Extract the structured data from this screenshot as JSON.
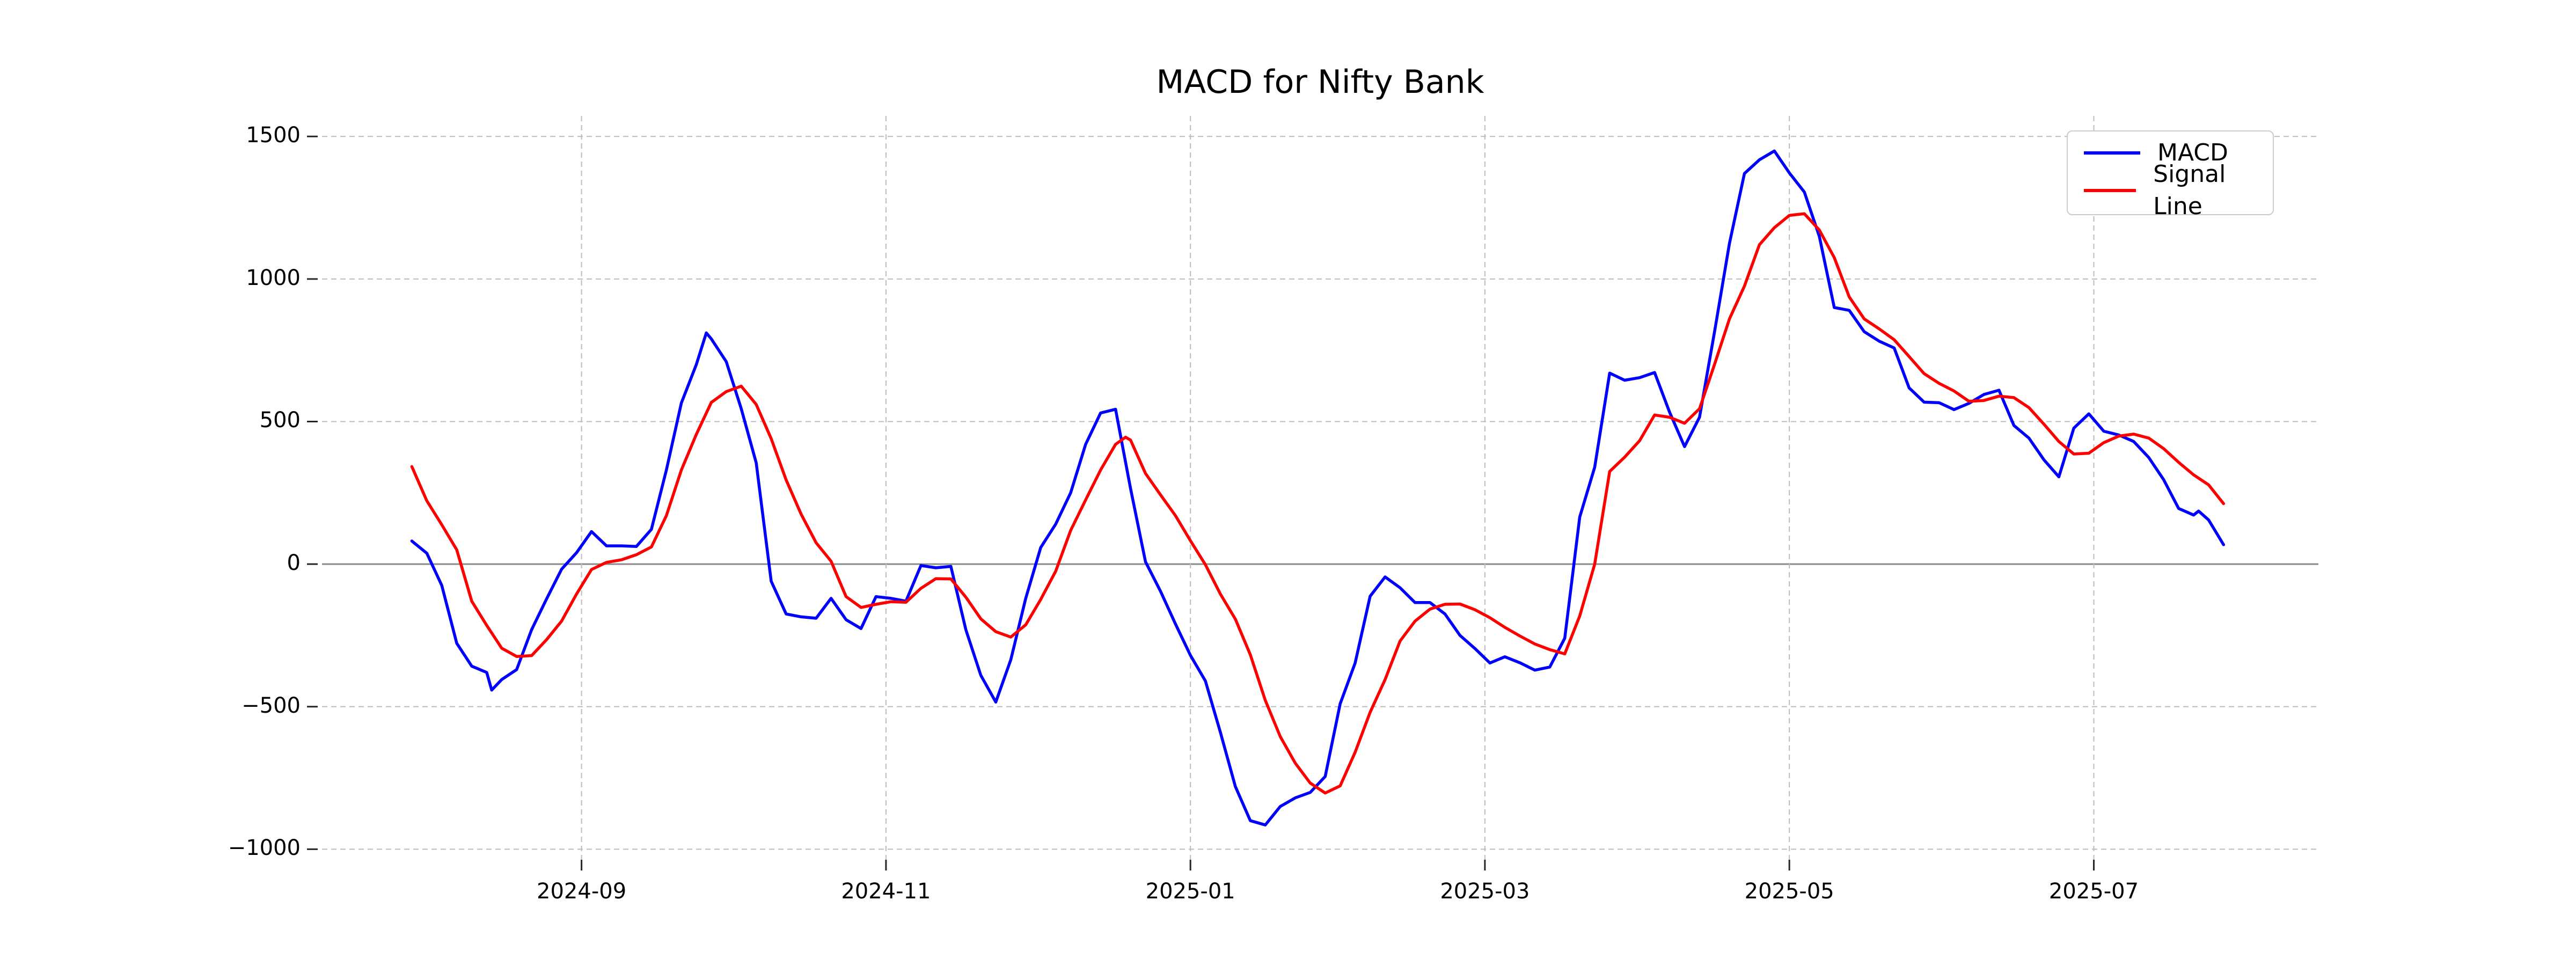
{
  "title": "MACD for Nifty Bank",
  "legend": {
    "items": [
      {
        "label": "MACD",
        "color": "#0000ff"
      },
      {
        "label": "Signal Line",
        "color": "#ff0000"
      }
    ]
  },
  "chart_data": {
    "type": "line",
    "title": "MACD for Nifty Bank",
    "xlabel": "",
    "ylabel": "",
    "grid": true,
    "grid_style": "dashed",
    "zero_line": true,
    "legend_position": "upper right",
    "ylim": [
      -1037,
      1572
    ],
    "x_range": [
      "2024-07-11",
      "2025-08-15"
    ],
    "y_ticks": [
      1500,
      1000,
      500,
      0,
      -500,
      -1000
    ],
    "y_tick_labels": [
      "1500",
      "1000",
      "500",
      "0",
      "−500",
      "−1000"
    ],
    "x_ticks": [
      {
        "label": "2024-09",
        "date": "2024-09-01"
      },
      {
        "label": "2024-11",
        "date": "2024-11-01"
      },
      {
        "label": "2025-01",
        "date": "2025-01-01"
      },
      {
        "label": "2025-03",
        "date": "2025-03-01"
      },
      {
        "label": "2025-05",
        "date": "2025-05-01"
      },
      {
        "label": "2025-07",
        "date": "2025-07-01"
      }
    ],
    "colors": {
      "macd": "#0000ff",
      "signal": "#ff0000",
      "grid": "#bcbcbc",
      "zero_line": "#8a8a8a",
      "tick": "#262626"
    },
    "series": [
      {
        "name": "MACD",
        "color": "#0000ff",
        "points": [
          [
            "2024-07-29",
            81
          ],
          [
            "2024-08-01",
            38
          ],
          [
            "2024-08-04",
            -75
          ],
          [
            "2024-08-07",
            -278
          ],
          [
            "2024-08-10",
            -358
          ],
          [
            "2024-08-13",
            -380
          ],
          [
            "2024-08-14",
            -442
          ],
          [
            "2024-08-16",
            -405
          ],
          [
            "2024-08-19",
            -370
          ],
          [
            "2024-08-22",
            -230
          ],
          [
            "2024-08-25",
            -122
          ],
          [
            "2024-08-28",
            -18
          ],
          [
            "2024-08-31",
            40
          ],
          [
            "2024-09-03",
            114
          ],
          [
            "2024-09-06",
            64
          ],
          [
            "2024-09-09",
            64
          ],
          [
            "2024-09-12",
            62
          ],
          [
            "2024-09-15",
            122
          ],
          [
            "2024-09-18",
            330
          ],
          [
            "2024-09-21",
            565
          ],
          [
            "2024-09-24",
            700
          ],
          [
            "2024-09-26",
            811
          ],
          [
            "2024-09-27",
            790
          ],
          [
            "2024-09-30",
            710
          ],
          [
            "2024-10-03",
            545
          ],
          [
            "2024-10-06",
            355
          ],
          [
            "2024-10-09",
            -60
          ],
          [
            "2024-10-12",
            -175
          ],
          [
            "2024-10-15",
            -185
          ],
          [
            "2024-10-18",
            -190
          ],
          [
            "2024-10-21",
            -120
          ],
          [
            "2024-10-24",
            -195
          ],
          [
            "2024-10-27",
            -226
          ],
          [
            "2024-10-30",
            -114
          ],
          [
            "2024-11-02",
            -120
          ],
          [
            "2024-11-05",
            -130
          ],
          [
            "2024-11-08",
            -5
          ],
          [
            "2024-11-11",
            -13
          ],
          [
            "2024-11-14",
            -8
          ],
          [
            "2024-11-17",
            -230
          ],
          [
            "2024-11-20",
            -390
          ],
          [
            "2024-11-23",
            -484
          ],
          [
            "2024-11-26",
            -336
          ],
          [
            "2024-11-29",
            -120
          ],
          [
            "2024-12-02",
            58
          ],
          [
            "2024-12-05",
            140
          ],
          [
            "2024-12-08",
            250
          ],
          [
            "2024-12-11",
            420
          ],
          [
            "2024-12-14",
            530
          ],
          [
            "2024-12-17",
            543
          ],
          [
            "2024-12-20",
            265
          ],
          [
            "2024-12-23",
            8
          ],
          [
            "2024-12-26",
            -95
          ],
          [
            "2024-12-29",
            -210
          ],
          [
            "2025-01-01",
            -320
          ],
          [
            "2025-01-04",
            -410
          ],
          [
            "2025-01-07",
            -590
          ],
          [
            "2025-01-10",
            -780
          ],
          [
            "2025-01-13",
            -900
          ],
          [
            "2025-01-16",
            -915
          ],
          [
            "2025-01-19",
            -850
          ],
          [
            "2025-01-22",
            -820
          ],
          [
            "2025-01-25",
            -801
          ],
          [
            "2025-01-28",
            -745
          ],
          [
            "2025-01-31",
            -490
          ],
          [
            "2025-02-03",
            -347
          ],
          [
            "2025-02-06",
            -113
          ],
          [
            "2025-02-09",
            -45
          ],
          [
            "2025-02-12",
            -83
          ],
          [
            "2025-02-15",
            -135
          ],
          [
            "2025-02-18",
            -135
          ],
          [
            "2025-02-21",
            -175
          ],
          [
            "2025-02-24",
            -250
          ],
          [
            "2025-02-27",
            -296
          ],
          [
            "2025-03-02",
            -347
          ],
          [
            "2025-03-05",
            -325
          ],
          [
            "2025-03-08",
            -346
          ],
          [
            "2025-03-11",
            -372
          ],
          [
            "2025-03-14",
            -361
          ],
          [
            "2025-03-17",
            -260
          ],
          [
            "2025-03-20",
            165
          ],
          [
            "2025-03-23",
            340
          ],
          [
            "2025-03-26",
            670
          ],
          [
            "2025-03-29",
            645
          ],
          [
            "2025-04-01",
            654
          ],
          [
            "2025-04-04",
            672
          ],
          [
            "2025-04-07",
            533
          ],
          [
            "2025-04-10",
            412
          ],
          [
            "2025-04-13",
            515
          ],
          [
            "2025-04-16",
            814
          ],
          [
            "2025-04-19",
            1125
          ],
          [
            "2025-04-22",
            1370
          ],
          [
            "2025-04-25",
            1418
          ],
          [
            "2025-04-28",
            1449
          ],
          [
            "2025-05-01",
            1372
          ],
          [
            "2025-05-04",
            1305
          ],
          [
            "2025-05-07",
            1150
          ],
          [
            "2025-05-10",
            900
          ],
          [
            "2025-05-13",
            890
          ],
          [
            "2025-05-16",
            815
          ],
          [
            "2025-05-19",
            782
          ],
          [
            "2025-05-22",
            758
          ],
          [
            "2025-05-25",
            618
          ],
          [
            "2025-05-28",
            568
          ],
          [
            "2025-05-31",
            566
          ],
          [
            "2025-06-03",
            542
          ],
          [
            "2025-06-06",
            564
          ],
          [
            "2025-06-09",
            595
          ],
          [
            "2025-06-12",
            610
          ],
          [
            "2025-06-15",
            486
          ],
          [
            "2025-06-18",
            442
          ],
          [
            "2025-06-21",
            366
          ],
          [
            "2025-06-24",
            306
          ],
          [
            "2025-06-27",
            477
          ],
          [
            "2025-06-30",
            527
          ],
          [
            "2025-07-03",
            466
          ],
          [
            "2025-07-06",
            453
          ],
          [
            "2025-07-09",
            430
          ],
          [
            "2025-07-12",
            374
          ],
          [
            "2025-07-15",
            296
          ],
          [
            "2025-07-18",
            195
          ],
          [
            "2025-07-21",
            172
          ],
          [
            "2025-07-22",
            186
          ],
          [
            "2025-07-24",
            155
          ],
          [
            "2025-07-27",
            68
          ]
        ]
      },
      {
        "name": "Signal Line",
        "color": "#ff0000",
        "points": [
          [
            "2024-07-29",
            342
          ],
          [
            "2024-08-01",
            222
          ],
          [
            "2024-08-04",
            138
          ],
          [
            "2024-08-07",
            50
          ],
          [
            "2024-08-10",
            -130
          ],
          [
            "2024-08-13",
            -215
          ],
          [
            "2024-08-16",
            -295
          ],
          [
            "2024-08-19",
            -324
          ],
          [
            "2024-08-22",
            -321
          ],
          [
            "2024-08-25",
            -265
          ],
          [
            "2024-08-28",
            -200
          ],
          [
            "2024-08-31",
            -105
          ],
          [
            "2024-09-03",
            -19
          ],
          [
            "2024-09-06",
            6
          ],
          [
            "2024-09-09",
            15
          ],
          [
            "2024-09-12",
            33
          ],
          [
            "2024-09-15",
            60
          ],
          [
            "2024-09-18",
            170
          ],
          [
            "2024-09-21",
            330
          ],
          [
            "2024-09-24",
            455
          ],
          [
            "2024-09-27",
            567
          ],
          [
            "2024-09-30",
            605
          ],
          [
            "2024-10-03",
            624
          ],
          [
            "2024-10-06",
            560
          ],
          [
            "2024-10-09",
            440
          ],
          [
            "2024-10-12",
            295
          ],
          [
            "2024-10-15",
            175
          ],
          [
            "2024-10-18",
            75
          ],
          [
            "2024-10-21",
            10
          ],
          [
            "2024-10-24",
            -114
          ],
          [
            "2024-10-27",
            -152
          ],
          [
            "2024-10-30",
            -141
          ],
          [
            "2024-11-02",
            -132
          ],
          [
            "2024-11-05",
            -134
          ],
          [
            "2024-11-08",
            -85
          ],
          [
            "2024-11-11",
            -51
          ],
          [
            "2024-11-14",
            -52
          ],
          [
            "2024-11-17",
            -116
          ],
          [
            "2024-11-20",
            -192
          ],
          [
            "2024-11-23",
            -237
          ],
          [
            "2024-11-26",
            -256
          ],
          [
            "2024-11-29",
            -213
          ],
          [
            "2024-12-02",
            -124
          ],
          [
            "2024-12-05",
            -25
          ],
          [
            "2024-12-08",
            118
          ],
          [
            "2024-12-11",
            225
          ],
          [
            "2024-12-14",
            330
          ],
          [
            "2024-12-17",
            420
          ],
          [
            "2024-12-19",
            445
          ],
          [
            "2024-12-20",
            435
          ],
          [
            "2024-12-23",
            318
          ],
          [
            "2024-12-26",
            243
          ],
          [
            "2024-12-29",
            170
          ],
          [
            "2025-01-01",
            82
          ],
          [
            "2025-01-04",
            -2
          ],
          [
            "2025-01-07",
            -105
          ],
          [
            "2025-01-10",
            -193
          ],
          [
            "2025-01-13",
            -318
          ],
          [
            "2025-01-16",
            -478
          ],
          [
            "2025-01-19",
            -605
          ],
          [
            "2025-01-22",
            -698
          ],
          [
            "2025-01-25",
            -768
          ],
          [
            "2025-01-28",
            -803
          ],
          [
            "2025-01-31",
            -778
          ],
          [
            "2025-02-03",
            -660
          ],
          [
            "2025-02-06",
            -520
          ],
          [
            "2025-02-09",
            -405
          ],
          [
            "2025-02-12",
            -270
          ],
          [
            "2025-02-15",
            -200
          ],
          [
            "2025-02-18",
            -158
          ],
          [
            "2025-02-21",
            -141
          ],
          [
            "2025-02-24",
            -140
          ],
          [
            "2025-02-27",
            -160
          ],
          [
            "2025-03-02",
            -188
          ],
          [
            "2025-03-05",
            -222
          ],
          [
            "2025-03-08",
            -252
          ],
          [
            "2025-03-11",
            -280
          ],
          [
            "2025-03-14",
            -300
          ],
          [
            "2025-03-17",
            -315
          ],
          [
            "2025-03-20",
            -182
          ],
          [
            "2025-03-23",
            0
          ],
          [
            "2025-03-26",
            325
          ],
          [
            "2025-03-29",
            375
          ],
          [
            "2025-04-01",
            433
          ],
          [
            "2025-04-04",
            523
          ],
          [
            "2025-04-07",
            515
          ],
          [
            "2025-04-10",
            494
          ],
          [
            "2025-04-13",
            545
          ],
          [
            "2025-04-16",
            700
          ],
          [
            "2025-04-19",
            860
          ],
          [
            "2025-04-22",
            975
          ],
          [
            "2025-04-25",
            1120
          ],
          [
            "2025-04-28",
            1180
          ],
          [
            "2025-05-01",
            1223
          ],
          [
            "2025-05-04",
            1229
          ],
          [
            "2025-05-07",
            1172
          ],
          [
            "2025-05-10",
            1075
          ],
          [
            "2025-05-13",
            937
          ],
          [
            "2025-05-16",
            860
          ],
          [
            "2025-05-19",
            825
          ],
          [
            "2025-05-22",
            787
          ],
          [
            "2025-05-25",
            728
          ],
          [
            "2025-05-28",
            668
          ],
          [
            "2025-05-31",
            634
          ],
          [
            "2025-06-03",
            607
          ],
          [
            "2025-06-06",
            571
          ],
          [
            "2025-06-09",
            574
          ],
          [
            "2025-06-12",
            589
          ],
          [
            "2025-06-15",
            584
          ],
          [
            "2025-06-18",
            549
          ],
          [
            "2025-06-21",
            491
          ],
          [
            "2025-06-24",
            430
          ],
          [
            "2025-06-27",
            386
          ],
          [
            "2025-06-30",
            389
          ],
          [
            "2025-07-03",
            426
          ],
          [
            "2025-07-06",
            449
          ],
          [
            "2025-07-09",
            456
          ],
          [
            "2025-07-12",
            442
          ],
          [
            "2025-07-15",
            405
          ],
          [
            "2025-07-18",
            357
          ],
          [
            "2025-07-21",
            313
          ],
          [
            "2025-07-24",
            278
          ],
          [
            "2025-07-27",
            212
          ]
        ]
      }
    ]
  }
}
